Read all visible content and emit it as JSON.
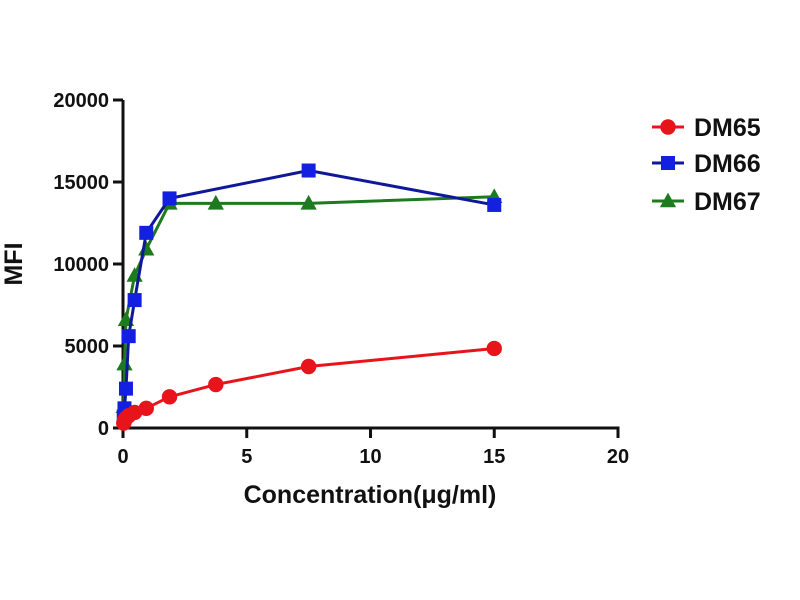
{
  "chart_data": {
    "type": "line",
    "title": "",
    "xlabel": "Concentration(μg/ml)",
    "ylabel": "MFI",
    "xlim": [
      0,
      20
    ],
    "ylim": [
      0,
      20000
    ],
    "xticks": [
      "0",
      "5",
      "10",
      "15",
      "20"
    ],
    "yticks": [
      "0",
      "5000",
      "10000",
      "15000",
      "20000"
    ],
    "grid": false,
    "legend_position": "top-right",
    "series": [
      {
        "name": "DM65",
        "color": "#e8141b",
        "marker": "circle",
        "x": [
          0.03,
          0.06,
          0.12,
          0.23,
          0.47,
          0.94,
          1.88,
          3.75,
          7.5,
          15
        ],
        "y": [
          300,
          450,
          600,
          750,
          950,
          1200,
          1900,
          2650,
          3750,
          4850
        ]
      },
      {
        "name": "DM66",
        "color": "#1420e0",
        "line_color": "#10189a",
        "marker": "square",
        "x": [
          0.03,
          0.06,
          0.12,
          0.23,
          0.47,
          0.94,
          1.88,
          7.5,
          15
        ],
        "y": [
          700,
          1200,
          2400,
          5600,
          7800,
          11900,
          14000,
          15700,
          13600
        ]
      },
      {
        "name": "DM67",
        "color": "#1e7a1e",
        "marker": "triangle",
        "x": [
          0.03,
          0.06,
          0.12,
          0.47,
          0.94,
          1.88,
          3.75,
          7.5,
          15
        ],
        "y": [
          1300,
          3900,
          6600,
          9300,
          10900,
          13700,
          13700,
          13700,
          14100
        ]
      }
    ]
  }
}
